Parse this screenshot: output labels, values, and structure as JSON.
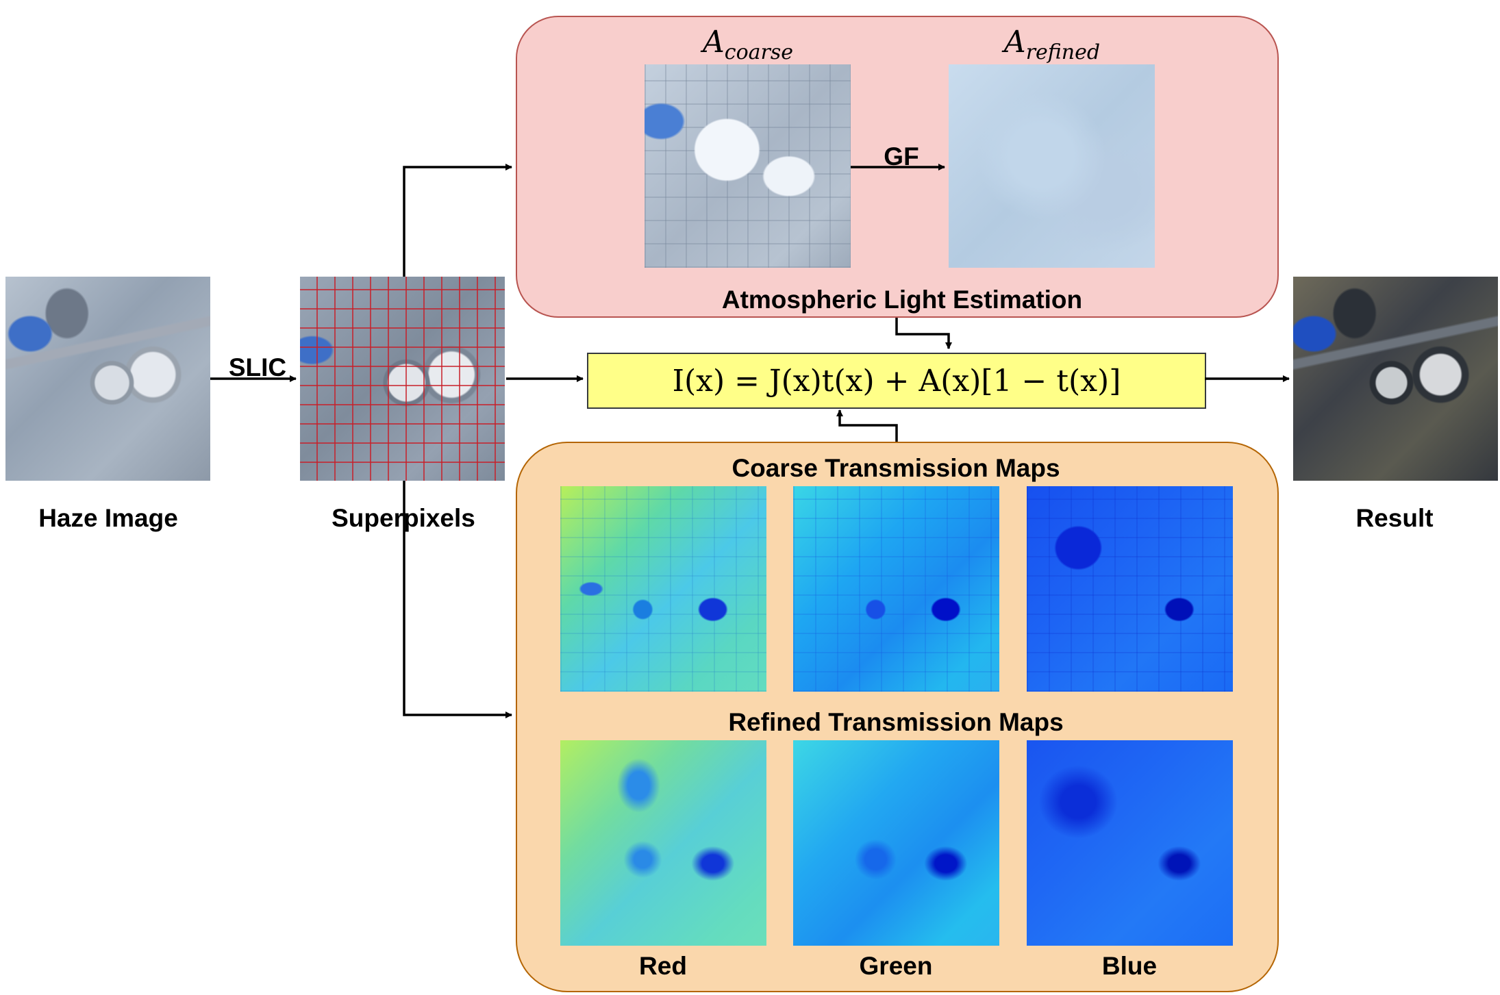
{
  "labels": {
    "haze_image": "Haze Image",
    "slic": "SLIC",
    "superpixels": "Superpixels",
    "result": "Result",
    "gf": "GF",
    "atmospheric_light": "Atmospheric Light Estimation",
    "coarse_maps": "Coarse Transmission Maps",
    "refined_maps": "Refined Transmission Maps",
    "red": "Red",
    "green": "Green",
    "blue": "Blue"
  },
  "math": {
    "a_coarse_base": "A",
    "a_coarse_sub": "coarse",
    "a_refined_base": "A",
    "a_refined_sub": "refined",
    "equation": "I(x) = J(x)t(x) + A(x)[1 − t(x)]"
  },
  "colors": {
    "atm_panel_fill": "#f8cecc",
    "atm_panel_border": "#b85450",
    "trans_panel_fill": "#fad7ac",
    "trans_panel_border": "#b46504",
    "equation_fill": "#ffff88",
    "superpixel_boundary": "#c81e28"
  }
}
